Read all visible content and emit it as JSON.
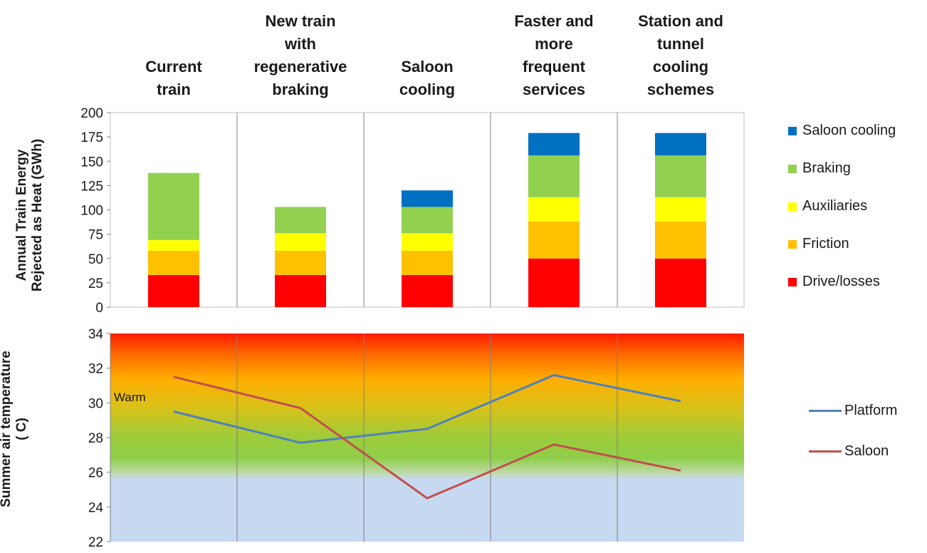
{
  "categories": [
    {
      "label_lines": [
        "Current",
        "train"
      ]
    },
    {
      "label_lines": [
        "New train",
        "with",
        "regenerative",
        "braking"
      ]
    },
    {
      "label_lines": [
        "Saloon",
        "cooling"
      ]
    },
    {
      "label_lines": [
        "Faster and",
        "more",
        "frequent",
        "services"
      ]
    },
    {
      "label_lines": [
        "Station and",
        "tunnel",
        "cooling",
        "schemes"
      ]
    }
  ],
  "top_ylabel_lines": [
    "Annual  Train Energy",
    "Rejected as Heat (GWh)"
  ],
  "bottom_ylabel_lines": [
    "Summer air temperature",
    "( C)"
  ],
  "warm_label": "Warm",
  "chart_data": [
    {
      "type": "bar",
      "stacked": true,
      "categories": [
        "Current train",
        "New train with regenerative braking",
        "Saloon cooling",
        "Faster and more frequent services",
        "Station and tunnel cooling schemes"
      ],
      "ylim": [
        0,
        200
      ],
      "yticks": [
        0,
        25,
        50,
        75,
        100,
        125,
        150,
        175,
        200
      ],
      "ylabel": "Annual  Train Energy Rejected as Heat (GWh)",
      "legend_position": "right",
      "series": [
        {
          "name": "Drive/losses",
          "color": "#ff0000",
          "values": [
            33,
            33,
            33,
            50,
            50
          ]
        },
        {
          "name": "Friction",
          "color": "#ffc000",
          "values": [
            25,
            25,
            25,
            38,
            38
          ]
        },
        {
          "name": "Auxiliaries",
          "color": "#ffff00",
          "values": [
            11,
            18,
            18,
            25,
            25
          ]
        },
        {
          "name": "Braking",
          "color": "#92d050",
          "values": [
            69,
            27,
            27,
            43,
            43
          ]
        },
        {
          "name": "Saloon cooling",
          "color": "#0070c0",
          "values": [
            0,
            0,
            17,
            23,
            23
          ]
        }
      ],
      "legend_order": [
        "Saloon cooling",
        "Braking",
        "Auxiliaries",
        "Friction",
        "Drive/losses"
      ]
    },
    {
      "type": "line",
      "categories": [
        "Current train",
        "New train with regenerative braking",
        "Saloon cooling",
        "Faster and more frequent services",
        "Station and tunnel cooling schemes"
      ],
      "ylim": [
        22,
        34
      ],
      "yticks": [
        22,
        24,
        26,
        28,
        30,
        32,
        34
      ],
      "ylabel": "Summer air temperature ( C)",
      "legend_position": "right",
      "series": [
        {
          "name": "Platform",
          "color": "#4f81bd",
          "values": [
            29.5,
            27.7,
            28.5,
            31.6,
            30.1
          ]
        },
        {
          "name": "Saloon",
          "color": "#c0504d",
          "values": [
            31.5,
            29.7,
            24.5,
            27.6,
            26.1
          ]
        }
      ]
    }
  ]
}
